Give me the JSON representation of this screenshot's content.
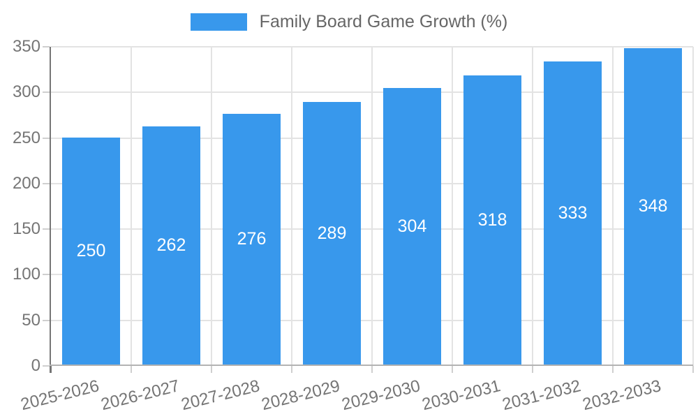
{
  "legend": {
    "label": "Family Board Game Growth (%)"
  },
  "chart_data": {
    "type": "bar",
    "title": "Family Board Game Growth (%)",
    "categories": [
      "2025-2026",
      "2026-2027",
      "2027-2028",
      "2028-2029",
      "2029-2030",
      "2030-2031",
      "2031-2032",
      "2032-2033"
    ],
    "values": [
      250,
      262,
      276,
      289,
      304,
      318,
      333,
      348
    ],
    "value_labels": [
      "250",
      "262",
      "276",
      "289",
      "304",
      "318",
      "333",
      "348"
    ],
    "xlabel": "",
    "ylabel": "",
    "ylim": [
      0,
      350
    ],
    "ytick_step": 50,
    "yticks": [
      0,
      50,
      100,
      150,
      200,
      250,
      300,
      350
    ],
    "grid": true,
    "legend_position": "top",
    "x_label_rotation_deg": -14,
    "bar_color": "#3898EC",
    "value_label_color": "#FFFFFF",
    "axis_text_color": "#757575",
    "legend_text_color": "#666666",
    "grid_color": "#E3E3E3",
    "y_axis_line_color": "#757575",
    "x_axis_line_color": "#B3B3B3",
    "tick_mark_color": "#CFCFCF",
    "background_color": "#FFFFFF"
  }
}
